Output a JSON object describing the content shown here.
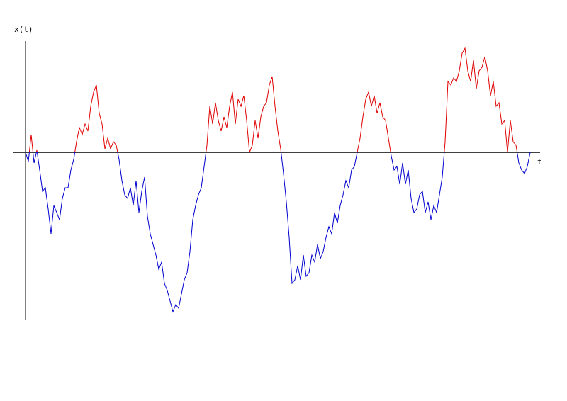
{
  "chart_data": {
    "type": "line",
    "x_label": "t",
    "y_label": "x(t)",
    "xlim": [
      -18,
      726
    ],
    "ylim": [
      -237,
      157
    ],
    "positive_color": "#e00000",
    "negative_color": "#0000d0",
    "axis_color": "#000000",
    "x": [
      0,
      4,
      8,
      12,
      16,
      20,
      24,
      28,
      32,
      36,
      40,
      44,
      48,
      52,
      56,
      60,
      64,
      68,
      72,
      76,
      80,
      84,
      88,
      92,
      96,
      100,
      104,
      108,
      112,
      116,
      120,
      124,
      128,
      132,
      136,
      140,
      144,
      148,
      152,
      156,
      160,
      164,
      168,
      172,
      176,
      180,
      184,
      188,
      192,
      196,
      200,
      204,
      208,
      212,
      216,
      220,
      224,
      228,
      232,
      236,
      240,
      244,
      248,
      252,
      256,
      260,
      264,
      268,
      272,
      276,
      280,
      284,
      288,
      292,
      296,
      300,
      304,
      308,
      312,
      316,
      320,
      324,
      328,
      332,
      336,
      340,
      344,
      348,
      352,
      356,
      360,
      364,
      368,
      372,
      376,
      380,
      384,
      388,
      392,
      396,
      400,
      404,
      408,
      412,
      416,
      420,
      424,
      428,
      432,
      436,
      440,
      444,
      448,
      452,
      456,
      460,
      464,
      468,
      472,
      476,
      480,
      484,
      488,
      492,
      496,
      500,
      504,
      508,
      512,
      516,
      520,
      524,
      528,
      532,
      536,
      540,
      544,
      548,
      552,
      556,
      560,
      564,
      568,
      572,
      576,
      580,
      584,
      588,
      592,
      596,
      600,
      604,
      608,
      612,
      616,
      620,
      624,
      628,
      632,
      636,
      640,
      644,
      648,
      652,
      656,
      660,
      664,
      668,
      672,
      676,
      680,
      684,
      688,
      692,
      696,
      700,
      704,
      708,
      712
    ],
    "values": [
      0,
      -13,
      25,
      -15,
      3,
      -25,
      -55,
      -50,
      -80,
      -115,
      -75,
      -85,
      -95,
      -65,
      -50,
      -50,
      -25,
      -10,
      15,
      35,
      25,
      40,
      30,
      65,
      85,
      95,
      55,
      40,
      5,
      20,
      5,
      15,
      10,
      -10,
      -40,
      -60,
      -65,
      -50,
      -75,
      -40,
      -85,
      -55,
      -35,
      -90,
      -115,
      -130,
      -145,
      -165,
      -155,
      -185,
      -195,
      -210,
      -225,
      -215,
      -220,
      -200,
      -180,
      -170,
      -140,
      -95,
      -75,
      -60,
      -50,
      -20,
      10,
      65,
      40,
      70,
      45,
      30,
      50,
      35,
      65,
      85,
      40,
      75,
      65,
      80,
      45,
      0,
      10,
      45,
      20,
      50,
      65,
      70,
      95,
      107,
      65,
      30,
      5,
      -30,
      -70,
      -120,
      -185,
      -180,
      -160,
      -180,
      -145,
      -175,
      -170,
      -145,
      -155,
      -130,
      -150,
      -140,
      -120,
      -105,
      -115,
      -85,
      -100,
      -75,
      -60,
      -40,
      -50,
      -25,
      -20,
      0,
      20,
      50,
      75,
      85,
      65,
      80,
      55,
      70,
      50,
      45,
      20,
      -5,
      -25,
      -20,
      -45,
      -15,
      -45,
      -25,
      -65,
      -85,
      -80,
      -60,
      -55,
      -85,
      -70,
      -95,
      -75,
      -85,
      -60,
      -35,
      15,
      100,
      95,
      105,
      100,
      115,
      140,
      147,
      115,
      100,
      130,
      90,
      115,
      120,
      135,
      115,
      80,
      100,
      65,
      70,
      40,
      45,
      0,
      45,
      15,
      10,
      -15,
      -25,
      -30,
      -20,
      0
    ]
  }
}
